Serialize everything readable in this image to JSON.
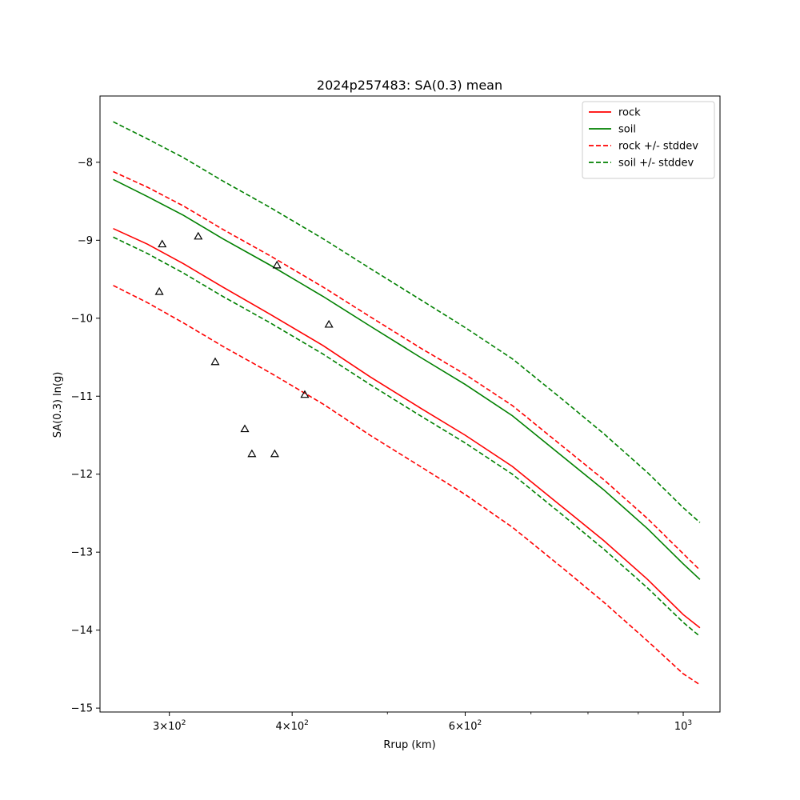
{
  "chart_data": {
    "type": "line",
    "title": "2024p257483: SA(0.3) mean",
    "xlabel": "Rrup (km)",
    "ylabel": "SA(0.3) ln(g)",
    "xscale": "log",
    "xlim": [
      255,
      1090
    ],
    "ylim": [
      -15.05,
      -7.15
    ],
    "xticks": [
      {
        "value": 300,
        "label": "3 × 10²",
        "base": "3×10",
        "exp": "2"
      },
      {
        "value": 400,
        "label": "4 × 10²",
        "base": "4×10",
        "exp": "2"
      },
      {
        "value": 600,
        "label": "6 × 10²",
        "base": "6×10",
        "exp": "2"
      },
      {
        "value": 1000,
        "label": "10³",
        "base": "10",
        "exp": "3"
      }
    ],
    "xminor_ticks": [
      500,
      700,
      800,
      900
    ],
    "yticks": [
      {
        "value": -8,
        "label": "−8"
      },
      {
        "value": -9,
        "label": "−9"
      },
      {
        "value": -10,
        "label": "−10"
      },
      {
        "value": -11,
        "label": "−11"
      },
      {
        "value": -12,
        "label": "−12"
      },
      {
        "value": -13,
        "label": "−13"
      },
      {
        "value": -14,
        "label": "−14"
      },
      {
        "value": -15,
        "label": "−15"
      }
    ],
    "grid": false,
    "legend": {
      "placement": "top-right",
      "entries": [
        {
          "label": "rock",
          "color": "#ff0000",
          "dash": "solid"
        },
        {
          "label": "soil",
          "color": "#008000",
          "dash": "solid"
        },
        {
          "label": "rock +/- stddev",
          "color": "#ff0000",
          "dash": "dashed"
        },
        {
          "label": "soil +/- stddev",
          "color": "#008000",
          "dash": "dashed"
        }
      ]
    },
    "x": [
      263,
      285,
      310,
      340,
      380,
      430,
      480,
      540,
      600,
      670,
      750,
      830,
      920,
      1000,
      1040
    ],
    "series": [
      {
        "name": "rock",
        "color": "#ff0000",
        "dash": "solid",
        "values": [
          -8.85,
          -9.05,
          -9.3,
          -9.6,
          -9.95,
          -10.35,
          -10.75,
          -11.15,
          -11.5,
          -11.9,
          -12.4,
          -12.85,
          -13.35,
          -13.8,
          -13.97
        ]
      },
      {
        "name": "soil",
        "color": "#008000",
        "dash": "solid",
        "values": [
          -8.22,
          -8.44,
          -8.68,
          -8.98,
          -9.32,
          -9.72,
          -10.1,
          -10.5,
          -10.85,
          -11.25,
          -11.75,
          -12.2,
          -12.7,
          -13.15,
          -13.35
        ]
      },
      {
        "name": "rock + stddev",
        "color": "#ff0000",
        "dash": "dashed",
        "values": [
          -8.12,
          -8.32,
          -8.56,
          -8.86,
          -9.2,
          -9.6,
          -9.98,
          -10.38,
          -10.72,
          -11.12,
          -11.62,
          -12.07,
          -12.57,
          -13.02,
          -13.23
        ]
      },
      {
        "name": "rock - stddev",
        "color": "#ff0000",
        "dash": "dashed",
        "values": [
          -9.58,
          -9.8,
          -10.06,
          -10.36,
          -10.7,
          -11.1,
          -11.5,
          -11.9,
          -12.26,
          -12.68,
          -13.18,
          -13.64,
          -14.14,
          -14.56,
          -14.7
        ]
      },
      {
        "name": "soil + stddev",
        "color": "#008000",
        "dash": "dashed",
        "values": [
          -7.48,
          -7.7,
          -7.94,
          -8.24,
          -8.58,
          -8.98,
          -9.36,
          -9.76,
          -10.12,
          -10.52,
          -11.02,
          -11.48,
          -11.98,
          -12.43,
          -12.62
        ]
      },
      {
        "name": "soil - stddev",
        "color": "#008000",
        "dash": "dashed",
        "values": [
          -8.96,
          -9.17,
          -9.42,
          -9.72,
          -10.06,
          -10.46,
          -10.85,
          -11.25,
          -11.6,
          -12.0,
          -12.5,
          -12.96,
          -13.46,
          -13.9,
          -14.08
        ]
      }
    ],
    "observations": {
      "marker": "triangle",
      "color": "#000000",
      "points": [
        {
          "x": 295,
          "y": -9.05
        },
        {
          "x": 293,
          "y": -9.66
        },
        {
          "x": 321,
          "y": -8.95
        },
        {
          "x": 334,
          "y": -10.56
        },
        {
          "x": 358,
          "y": -11.42
        },
        {
          "x": 364,
          "y": -11.74
        },
        {
          "x": 384,
          "y": -11.74
        },
        {
          "x": 386,
          "y": -9.32
        },
        {
          "x": 412,
          "y": -10.98
        },
        {
          "x": 436,
          "y": -10.08
        }
      ]
    }
  }
}
